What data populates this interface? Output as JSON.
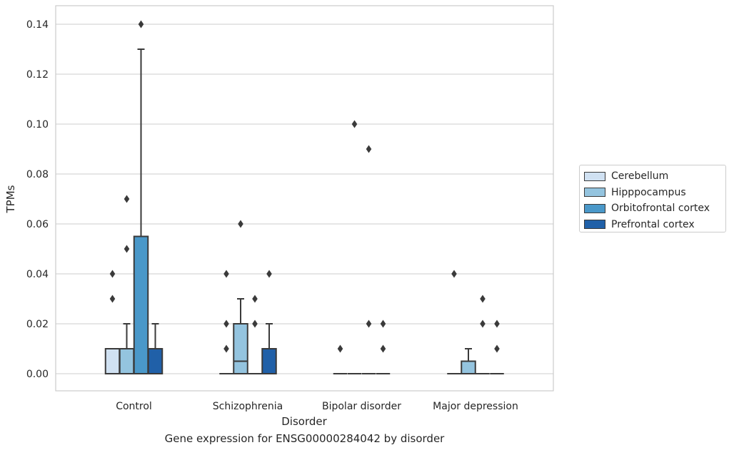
{
  "chart_data": {
    "type": "box",
    "title": "",
    "caption": "Gene expression for ENSG00000284042 by disorder",
    "xlabel": "Disorder",
    "ylabel": "TPMs",
    "ylim": [
      -0.007,
      0.147
    ],
    "yticks": [
      0.0,
      0.02,
      0.04,
      0.06,
      0.08,
      0.1,
      0.12,
      0.14
    ],
    "ytick_labels": [
      "0.00",
      "0.02",
      "0.04",
      "0.06",
      "0.08",
      "0.10",
      "0.12",
      "0.14"
    ],
    "grid": "horizontal",
    "legend_position": "right",
    "categories": [
      "Control",
      "Schizophrenia",
      "Bipolar disorder",
      "Major depression"
    ],
    "series": [
      {
        "name": "Cerebellum",
        "color": "#d0e1f2",
        "boxes": [
          {
            "q1": 0.0,
            "median": 0.0,
            "q3": 0.01,
            "whisker_low": 0.0,
            "whisker_high": 0.01,
            "outliers": [
              0.03,
              0.04
            ]
          },
          {
            "q1": 0.0,
            "median": 0.0,
            "q3": 0.0,
            "whisker_low": 0.0,
            "whisker_high": 0.0,
            "outliers": [
              0.01,
              0.02,
              0.04
            ]
          },
          {
            "q1": 0.0,
            "median": 0.0,
            "q3": 0.0,
            "whisker_low": 0.0,
            "whisker_high": 0.0,
            "outliers": [
              0.01
            ]
          },
          {
            "q1": 0.0,
            "median": 0.0,
            "q3": 0.0,
            "whisker_low": 0.0,
            "whisker_high": 0.0,
            "outliers": [
              0.04
            ]
          }
        ]
      },
      {
        "name": "Hipppocampus",
        "color": "#94c4df",
        "boxes": [
          {
            "q1": 0.0,
            "median": 0.0,
            "q3": 0.01,
            "whisker_low": 0.0,
            "whisker_high": 0.02,
            "outliers": [
              0.05,
              0.07
            ]
          },
          {
            "q1": 0.0,
            "median": 0.005,
            "q3": 0.02,
            "whisker_low": 0.0,
            "whisker_high": 0.03,
            "outliers": [
              0.06
            ]
          },
          {
            "q1": 0.0,
            "median": 0.0,
            "q3": 0.0,
            "whisker_low": 0.0,
            "whisker_high": 0.0,
            "outliers": [
              0.1
            ]
          },
          {
            "q1": 0.0,
            "median": 0.0,
            "q3": 0.005,
            "whisker_low": 0.0,
            "whisker_high": 0.01,
            "outliers": []
          }
        ]
      },
      {
        "name": "Orbitofrontal cortex",
        "color": "#4a98c9",
        "boxes": [
          {
            "q1": 0.0,
            "median": 0.0,
            "q3": 0.055,
            "whisker_low": 0.0,
            "whisker_high": 0.13,
            "outliers": [
              0.14
            ]
          },
          {
            "q1": 0.0,
            "median": 0.0,
            "q3": 0.0,
            "whisker_low": 0.0,
            "whisker_high": 0.0,
            "outliers": [
              0.02,
              0.03
            ]
          },
          {
            "q1": 0.0,
            "median": 0.0,
            "q3": 0.0,
            "whisker_low": 0.0,
            "whisker_high": 0.0,
            "outliers": [
              0.02,
              0.09
            ]
          },
          {
            "q1": 0.0,
            "median": 0.0,
            "q3": 0.0,
            "whisker_low": 0.0,
            "whisker_high": 0.0,
            "outliers": [
              0.02,
              0.03
            ]
          }
        ]
      },
      {
        "name": "Prefrontal cortex",
        "color": "#2060a8",
        "boxes": [
          {
            "q1": 0.0,
            "median": 0.0,
            "q3": 0.01,
            "whisker_low": 0.0,
            "whisker_high": 0.02,
            "outliers": []
          },
          {
            "q1": 0.0,
            "median": 0.0,
            "q3": 0.01,
            "whisker_low": 0.0,
            "whisker_high": 0.02,
            "outliers": [
              0.04
            ]
          },
          {
            "q1": 0.0,
            "median": 0.0,
            "q3": 0.0,
            "whisker_low": 0.0,
            "whisker_high": 0.0,
            "outliers": [
              0.01,
              0.02
            ]
          },
          {
            "q1": 0.0,
            "median": 0.0,
            "q3": 0.0,
            "whisker_low": 0.0,
            "whisker_high": 0.0,
            "outliers": [
              0.01,
              0.02
            ]
          }
        ]
      }
    ]
  }
}
